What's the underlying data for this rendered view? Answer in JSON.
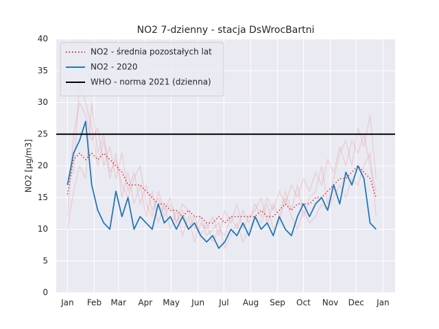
{
  "chart_data": {
    "type": "line",
    "title": "NO2 7-dzienny - stacja DsWrocBartni",
    "y_label": "NO2 [µg/m3]",
    "x": [
      1,
      8,
      15,
      22,
      29,
      36,
      43,
      50,
      57,
      64,
      71,
      78,
      85,
      92,
      99,
      106,
      113,
      120,
      127,
      134,
      141,
      148,
      155,
      162,
      169,
      176,
      183,
      190,
      197,
      204,
      211,
      218,
      225,
      232,
      239,
      246,
      253,
      260,
      267,
      274,
      281,
      288,
      295,
      302,
      309,
      316,
      323,
      330,
      337,
      344,
      351,
      358
    ],
    "xlim": [
      -12,
      380
    ],
    "xticks": [
      {
        "value": 1,
        "label": "Jan"
      },
      {
        "value": 32,
        "label": "Feb"
      },
      {
        "value": 60,
        "label": "Mar"
      },
      {
        "value": 91,
        "label": "Apr"
      },
      {
        "value": 121,
        "label": "May"
      },
      {
        "value": 152,
        "label": "Jun"
      },
      {
        "value": 182,
        "label": "Jul"
      },
      {
        "value": 213,
        "label": "Aug"
      },
      {
        "value": 244,
        "label": "Sep"
      },
      {
        "value": 274,
        "label": "Oct"
      },
      {
        "value": 305,
        "label": "Nov"
      },
      {
        "value": 335,
        "label": "Dec"
      },
      {
        "value": 366,
        "label": "Jan"
      }
    ],
    "ylim": [
      0,
      40
    ],
    "yticks": [
      0,
      5,
      10,
      15,
      20,
      25,
      30,
      35,
      40
    ],
    "grid": true,
    "legend": "upper left",
    "other_years": [
      {
        "color": "#d62728",
        "alpha": 0.13,
        "values": [
          12,
          25,
          30,
          28,
          24,
          26,
          20,
          23,
          18,
          22,
          16,
          19,
          14,
          17,
          13,
          15,
          12,
          14,
          11,
          13,
          10,
          12,
          9,
          11,
          8,
          10,
          9,
          12,
          10,
          13,
          11,
          14,
          12,
          15,
          13,
          16,
          14,
          17,
          15,
          18,
          16,
          19,
          17,
          21,
          19,
          23,
          20,
          24,
          22,
          25,
          20,
          16
        ]
      },
      {
        "color": "#d62728",
        "alpha": 0.13,
        "values": [
          18,
          19,
          33,
          30,
          26,
          20,
          24,
          18,
          22,
          15,
          19,
          14,
          17,
          12,
          16,
          11,
          14,
          10,
          13,
          9,
          12,
          8,
          11,
          10,
          12,
          9,
          13,
          11,
          14,
          10,
          12,
          13,
          15,
          11,
          14,
          12,
          16,
          13,
          17,
          12,
          15,
          16,
          20,
          14,
          18,
          22,
          24,
          20,
          26,
          23,
          28,
          18
        ]
      },
      {
        "color": "#d62728",
        "alpha": 0.13,
        "values": [
          10,
          16,
          20,
          18,
          30,
          22,
          25,
          19,
          21,
          17,
          15,
          18,
          20,
          14,
          12,
          16,
          13,
          15,
          11,
          14,
          13,
          10,
          12,
          9,
          10,
          11,
          7,
          9,
          11,
          8,
          10,
          12,
          11,
          14,
          10,
          11,
          15,
          12,
          10,
          13,
          11,
          12,
          14,
          13,
          15,
          17,
          15,
          18,
          17,
          20,
          22,
          12
        ]
      }
    ],
    "series": [
      {
        "name": "NO2 - średnia pozostałych lat",
        "color": "#d62728",
        "style": "dotted",
        "values": [
          15.5,
          21,
          22,
          21,
          22,
          21,
          22,
          21,
          20,
          19,
          17,
          17,
          17,
          16,
          15,
          14,
          14,
          13,
          13,
          12,
          13,
          12,
          12,
          11,
          11,
          12,
          11,
          12,
          12,
          12,
          12,
          12,
          13,
          12,
          12,
          13,
          14,
          13,
          14,
          14,
          14,
          15,
          15,
          16,
          17,
          18,
          18,
          19,
          20,
          19,
          18,
          15
        ]
      },
      {
        "name": "NO2 - 2020",
        "color": "#1f77b4",
        "style": "solid",
        "values": [
          17,
          22,
          24,
          27,
          17,
          13,
          11,
          10,
          16,
          12,
          15,
          10,
          12,
          11,
          10,
          14,
          11,
          12,
          10,
          12,
          10,
          11,
          9,
          8,
          9,
          7,
          8,
          10,
          9,
          11,
          9,
          12,
          10,
          11,
          9,
          12,
          10,
          9,
          12,
          14,
          12,
          14,
          15,
          13,
          17,
          14,
          19,
          17,
          20,
          18,
          11,
          10
        ]
      }
    ],
    "hline": {
      "name": "WHO - norma 2021 (dzienna)",
      "color": "#000000",
      "value": 25
    }
  }
}
